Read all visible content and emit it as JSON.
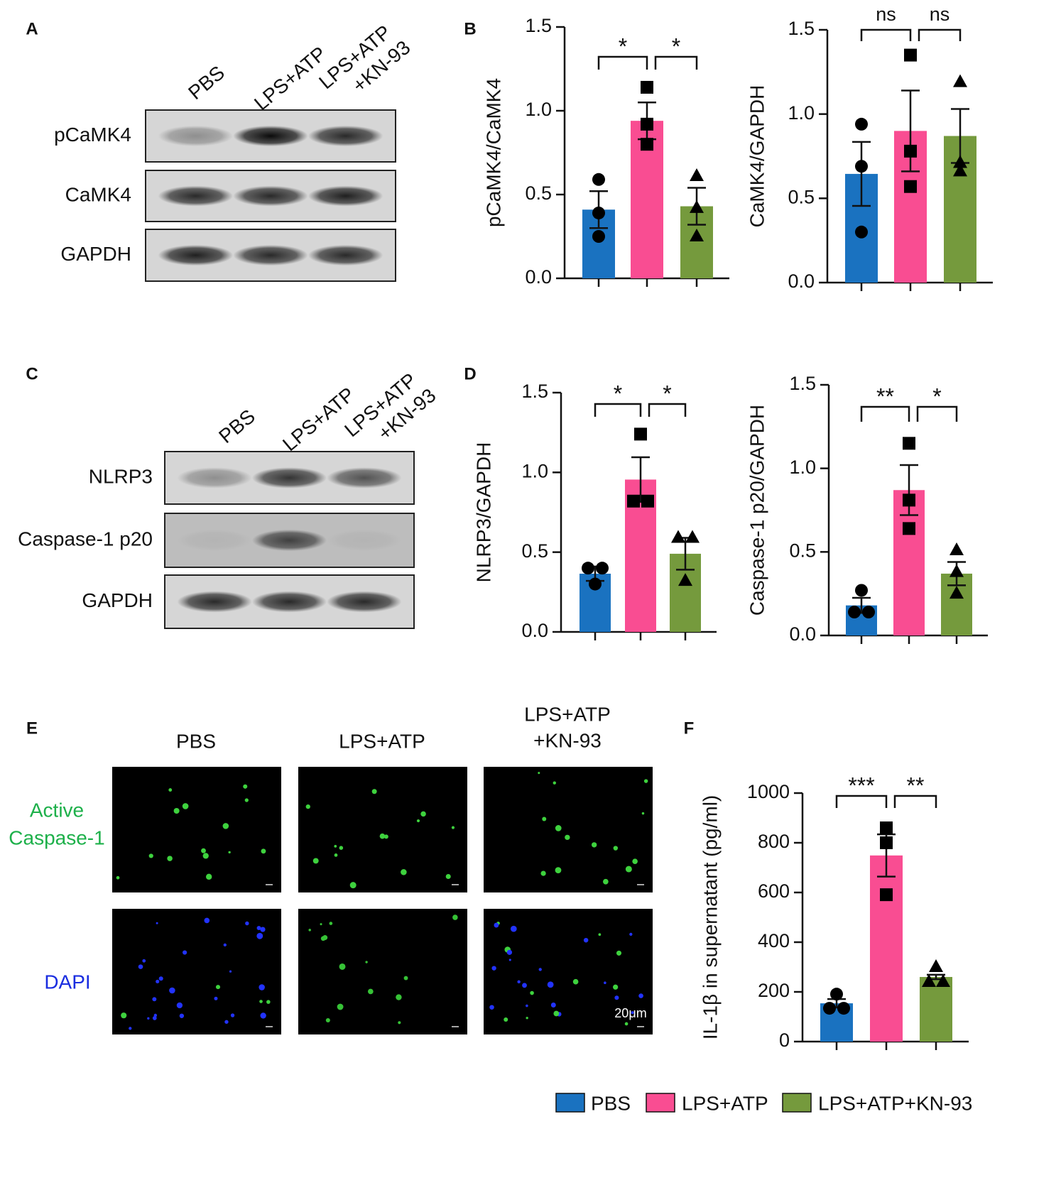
{
  "panel_letters": [
    "A",
    "B",
    "C",
    "D",
    "E",
    "F"
  ],
  "blots": [
    {
      "lanes": [
        "PBS",
        "LPS+ATP",
        [
          "LPS+ATP",
          "+KN-93"
        ]
      ],
      "rows": [
        "pCaMK4",
        "CaMK4",
        "GAPDH"
      ]
    },
    {
      "lanes": [
        "PBS",
        "LPS+ATP",
        [
          "LPS+ATP",
          "+KN-93"
        ]
      ],
      "rows": [
        "NLRP3",
        "Caspase-1 p20",
        "GAPDH"
      ]
    }
  ],
  "images": {
    "columns": [
      "PBS",
      "LPS+ATP",
      [
        "LPS+ATP",
        "+KN-93"
      ]
    ],
    "rows": [
      [
        "Active",
        "Caspase-1"
      ],
      [
        "DAPI"
      ]
    ],
    "scale_bar": "20μm"
  },
  "legend": [
    {
      "name": "PBS",
      "color": "#1a72c0"
    },
    {
      "name": "LPS+ATP",
      "color": "#f94d92"
    },
    {
      "name": "LPS+ATP+KN-93",
      "color": "#759a3d"
    }
  ],
  "chart_data": [
    {
      "type": "bar",
      "y_label": "pCaMK4/CaMK4",
      "categories": [
        null,
        null,
        null
      ],
      "values": [
        0.41,
        0.94,
        0.43
      ],
      "errors": [
        0.11,
        0.11,
        0.11
      ],
      "points": [
        [
          0.59,
          0.39,
          0.25
        ],
        [
          1.14,
          0.92,
          0.8
        ],
        [
          0.61,
          0.42,
          0.25
        ]
      ],
      "colors": [
        "#1a72c0",
        "#f94d92",
        "#759a3d"
      ],
      "ylim": [
        0,
        1.5
      ],
      "yticks": [
        {
          "value": 0,
          "label": "0.0"
        },
        0.5,
        {
          "value": 1,
          "label": "1.0"
        },
        1.5
      ],
      "significance": [
        {
          "label": "*",
          "groups": [
            0,
            1
          ]
        },
        {
          "label": "*",
          "groups": [
            1,
            2
          ]
        }
      ]
    },
    {
      "type": "bar",
      "y_label": "CaMK4/GAPDH",
      "categories": [
        null,
        null,
        null
      ],
      "values": [
        0.645,
        0.9,
        0.87
      ],
      "errors": [
        0.19,
        0.24,
        0.16
      ],
      "points": [
        [
          0.94,
          0.69,
          0.3
        ],
        [
          1.35,
          0.78,
          0.57
        ],
        [
          1.19,
          0.71,
          0.66
        ]
      ],
      "colors": [
        "#1a72c0",
        "#f94d92",
        "#759a3d"
      ],
      "ylim": [
        0,
        1.5
      ],
      "yticks": [
        {
          "value": 0,
          "label": "0.0"
        },
        0.5,
        {
          "value": 1,
          "label": "1.0"
        },
        1.5
      ],
      "significance": [
        {
          "label": "ns",
          "groups": [
            0,
            1
          ]
        },
        {
          "label": "ns",
          "groups": [
            1,
            2
          ]
        }
      ]
    },
    {
      "type": "bar",
      "y_label": "NLRP3/GAPDH",
      "categories": [
        null,
        null,
        null
      ],
      "values": [
        0.365,
        0.955,
        0.49
      ],
      "errors": [
        0.045,
        0.14,
        0.1
      ],
      "points": [
        [
          0.4,
          0.4,
          0.3
        ],
        [
          1.24,
          0.82,
          0.82
        ],
        [
          0.59,
          0.59,
          0.32
        ]
      ],
      "colors": [
        "#1a72c0",
        "#f94d92",
        "#759a3d"
      ],
      "ylim": [
        0,
        1.5
      ],
      "yticks": [
        {
          "value": 0,
          "label": "0.0"
        },
        0.5,
        {
          "value": 1,
          "label": "1.0"
        },
        1.5
      ],
      "significance": [
        {
          "label": "*",
          "groups": [
            0,
            1
          ]
        },
        {
          "label": "*",
          "groups": [
            1,
            2
          ]
        }
      ]
    },
    {
      "type": "bar",
      "y_label": "Caspase-1 p20/GAPDH",
      "categories": [
        null,
        null,
        null
      ],
      "values": [
        0.18,
        0.87,
        0.37
      ],
      "errors": [
        0.045,
        0.15,
        0.07
      ],
      "points": [
        [
          0.27,
          0.14,
          0.14
        ],
        [
          1.15,
          0.81,
          0.64
        ],
        [
          0.51,
          0.38,
          0.25
        ]
      ],
      "colors": [
        "#1a72c0",
        "#f94d92",
        "#759a3d"
      ],
      "ylim": [
        0,
        1.5
      ],
      "yticks": [
        {
          "value": 0,
          "label": "0.0"
        },
        0.5,
        {
          "value": 1,
          "label": "1.0"
        },
        1.5
      ],
      "significance": [
        {
          "label": "**",
          "groups": [
            0,
            1
          ]
        },
        {
          "label": "*",
          "groups": [
            1,
            2
          ]
        }
      ]
    },
    {
      "type": "bar",
      "y_label": "IL-1β in supernatant (pg/ml)",
      "categories": [
        null,
        null,
        null
      ],
      "values": [
        154,
        749,
        260
      ],
      "errors": [
        17,
        85,
        9
      ],
      "points": [
        [
          191,
          134,
          134
        ],
        [
          860,
          800,
          591
        ],
        [
          300,
          240,
          240
        ]
      ],
      "colors": [
        "#1a72c0",
        "#f94d92",
        "#759a3d"
      ],
      "ylim": [
        0,
        1000
      ],
      "yticks": [
        0,
        200,
        400,
        600,
        800,
        1000
      ],
      "significance": [
        {
          "label": "***",
          "groups": [
            0,
            1
          ]
        },
        {
          "label": "**",
          "groups": [
            1,
            2
          ]
        }
      ]
    }
  ]
}
